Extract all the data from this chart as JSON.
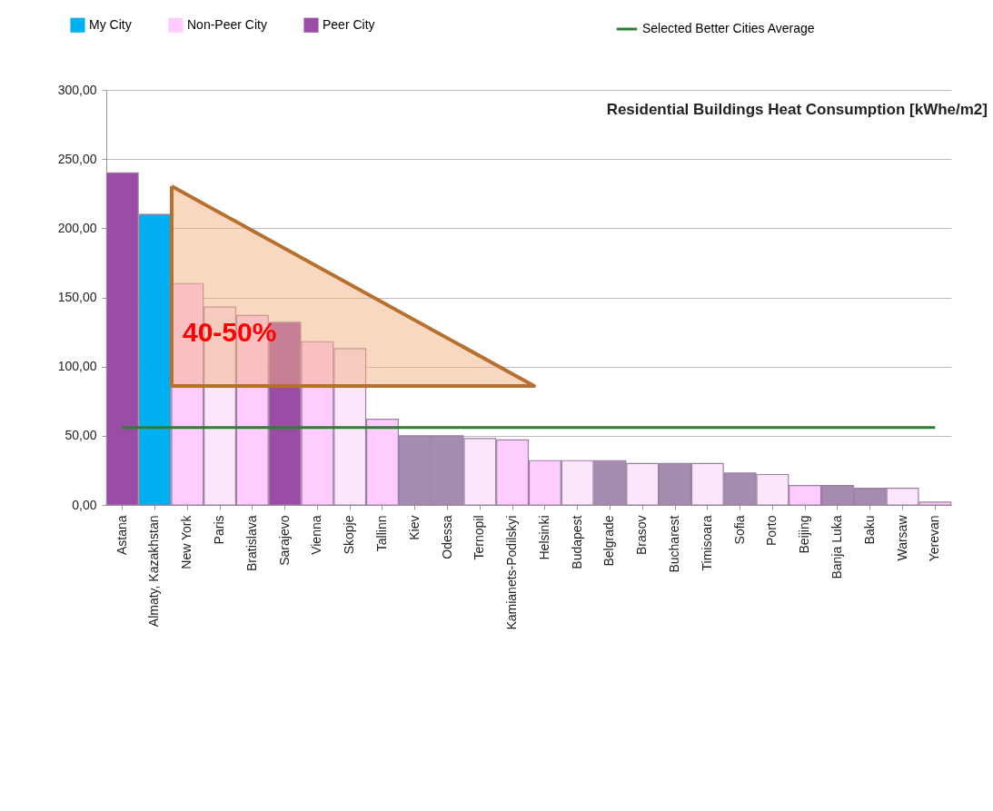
{
  "chart_data": {
    "type": "bar",
    "title": "Residential Buildings Heat Consumption  [kWhe/m2]",
    "categories": [
      "Astana",
      "Almaty, Kazakhstan",
      "New York",
      "Paris",
      "Bratislava",
      "Sarajevo",
      "Vienna",
      "Skopje",
      "Tallinn",
      "Kiev",
      "Odessa",
      "Ternopil",
      "Kamianets-Podilskyi",
      "Helsinki",
      "Budapest",
      "Belgrade",
      "Brasov",
      "Bucharest",
      "Timisoara",
      "Sofia",
      "Porto",
      "Beijing",
      "Banja Luka",
      "Baku",
      "Warsaw",
      "Yerevan"
    ],
    "series": [
      {
        "name": "My City",
        "color": "#00b0f0",
        "values": [
          null,
          210,
          null,
          null,
          null,
          null,
          null,
          null,
          null,
          null,
          null,
          null,
          null,
          null,
          null,
          null,
          null,
          null,
          null,
          null,
          null,
          null,
          null,
          null,
          null,
          null
        ]
      },
      {
        "name": "Non-Peer City",
        "color": "#ffccff",
        "colors": [
          null,
          null,
          "#ffccff",
          "#fbe6fb",
          "#ffccff",
          null,
          "#ffccff",
          "#fbe6fb",
          "#ffccff",
          null,
          null,
          "#fbe6fb",
          "#ffccff",
          "#ffccff",
          "#fbe6fb",
          null,
          "#fbe6fb",
          null,
          "#fbe6fb",
          null,
          "#fbe6fb",
          "#ffccff",
          null,
          null,
          "#fbe6fb",
          "#ffccff"
        ],
        "values": [
          null,
          null,
          160,
          143,
          137,
          null,
          118,
          113,
          62,
          null,
          null,
          48,
          47,
          32,
          32,
          null,
          30,
          null,
          30,
          null,
          22,
          14,
          null,
          null,
          12,
          2
        ]
      },
      {
        "name": "Peer City",
        "color": "#9b4da6",
        "colors": [
          "#9b4da6",
          null,
          null,
          null,
          null,
          "#9b4da6",
          null,
          null,
          null,
          "#a58cb0",
          "#a58cb0",
          null,
          null,
          null,
          null,
          "#a58cb0",
          null,
          "#a58cb0",
          null,
          "#a58cb0",
          null,
          null,
          "#a58cb0",
          "#a58cb0",
          null,
          null
        ],
        "values": [
          240,
          null,
          null,
          null,
          null,
          132,
          null,
          null,
          null,
          50,
          50,
          null,
          null,
          null,
          null,
          32,
          null,
          30,
          null,
          23,
          null,
          null,
          14,
          12,
          null,
          null
        ]
      },
      {
        "name": "Selected Better Cities Average",
        "type": "line",
        "color": "#2e7d32",
        "values": [
          56,
          56,
          56,
          56,
          56,
          56,
          56,
          56,
          56,
          56,
          56,
          56,
          56,
          56,
          56,
          56,
          56,
          56,
          56,
          56,
          56,
          56,
          56,
          56,
          56,
          56
        ]
      }
    ],
    "ylim": [
      0,
      300
    ],
    "yticks": [
      {
        "value": 0,
        "label": "0,00"
      },
      {
        "value": 50,
        "label": "50,00"
      },
      {
        "value": 100,
        "label": "100,00"
      },
      {
        "value": 150,
        "label": "150,00"
      },
      {
        "value": 200,
        "label": "200,00"
      },
      {
        "value": 250,
        "label": "250,00"
      },
      {
        "value": 300,
        "label": "300,00"
      }
    ],
    "grid": "y",
    "legend": "top",
    "annotations": [
      "40-50%"
    ]
  }
}
